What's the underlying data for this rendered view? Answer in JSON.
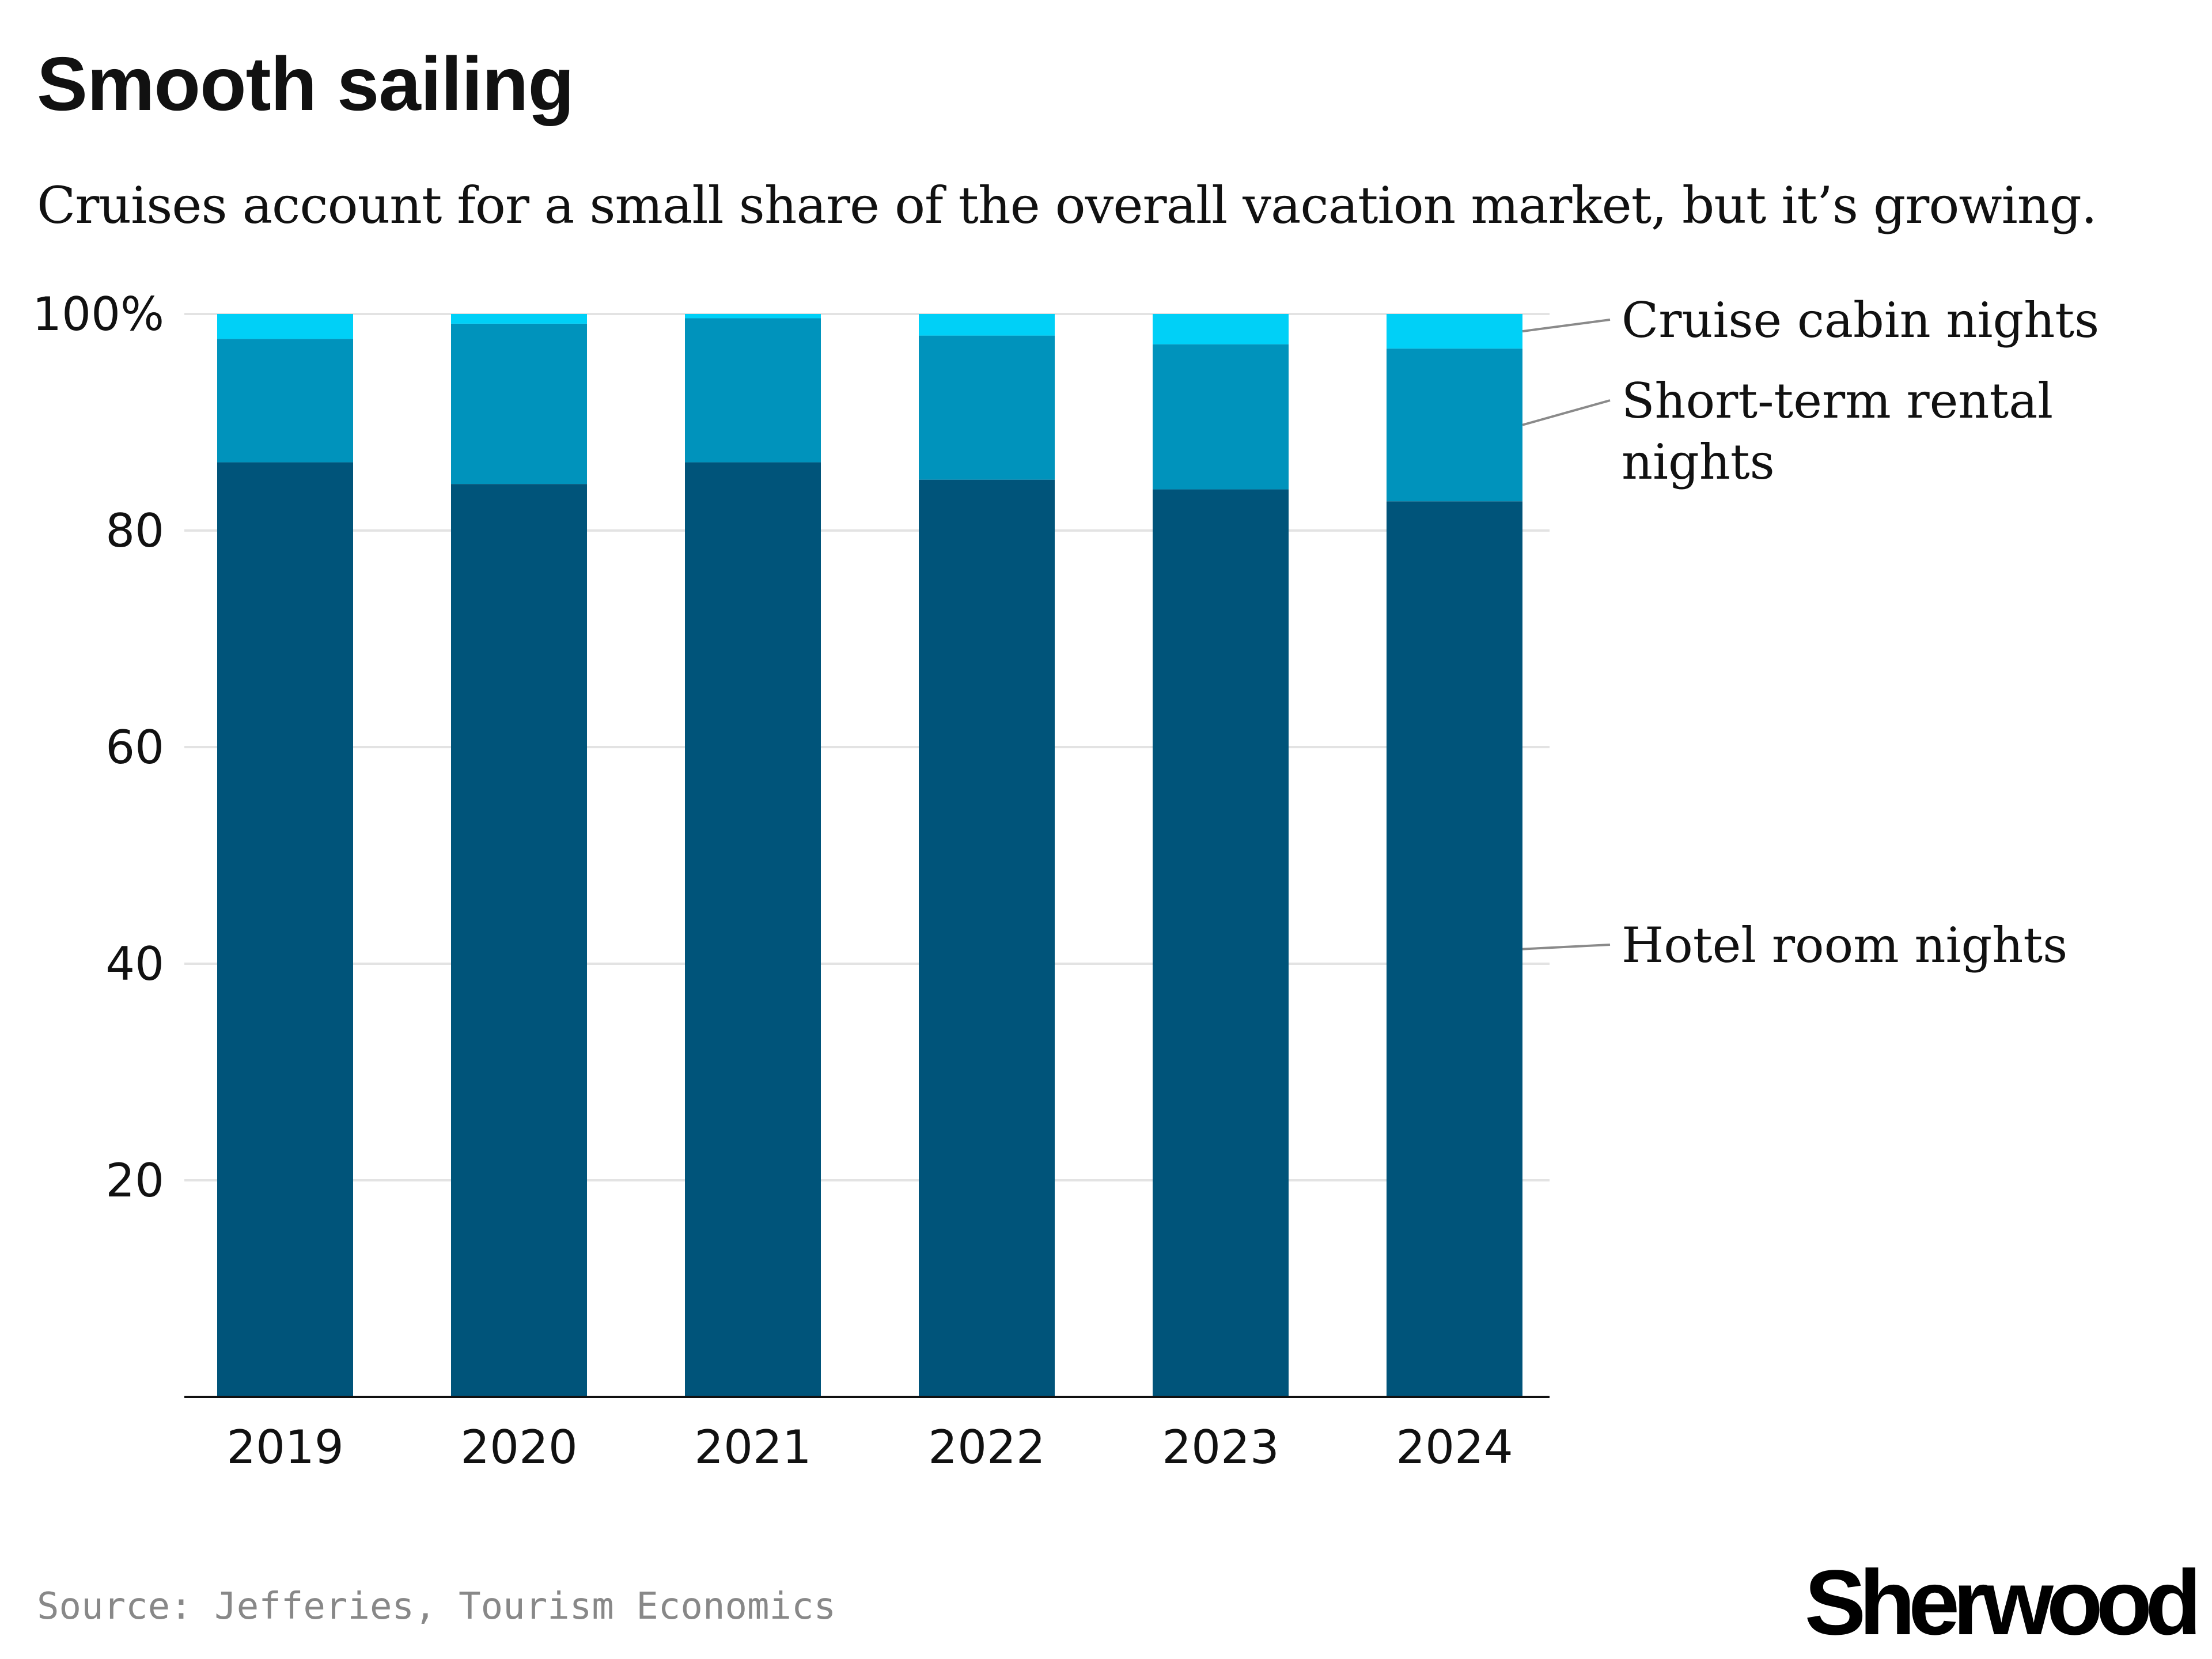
{
  "header": {
    "title": "Smooth sailing",
    "subtitle": "Cruises account for a small share of the overall vacation market, but it’s growing."
  },
  "footer": {
    "source": "Source: Jefferies, Tourism Economics",
    "brand": "Sherwood"
  },
  "chart_data": {
    "type": "bar",
    "stacked": true,
    "categories": [
      "2019",
      "2020",
      "2021",
      "2022",
      "2023",
      "2024"
    ],
    "series": [
      {
        "name": "Hotel room nights",
        "color": "#00547a",
        "values": [
          86.3,
          84.3,
          86.3,
          84.7,
          83.8,
          82.7
        ]
      },
      {
        "name": "Short-term rental nights",
        "color": "#0093bc",
        "values": [
          11.4,
          14.8,
          13.3,
          13.3,
          13.4,
          14.1
        ]
      },
      {
        "name": "Cruise cabin nights",
        "color": "#00d0f7",
        "values": [
          2.3,
          0.9,
          0.4,
          2.0,
          2.8,
          3.2
        ]
      }
    ],
    "ylim": [
      0,
      100
    ],
    "yticks": [
      20,
      40,
      60,
      80,
      100
    ],
    "ytick_labels": [
      "20",
      "40",
      "60",
      "80",
      "100%"
    ],
    "grid": true,
    "legend": "direct labels at right"
  }
}
